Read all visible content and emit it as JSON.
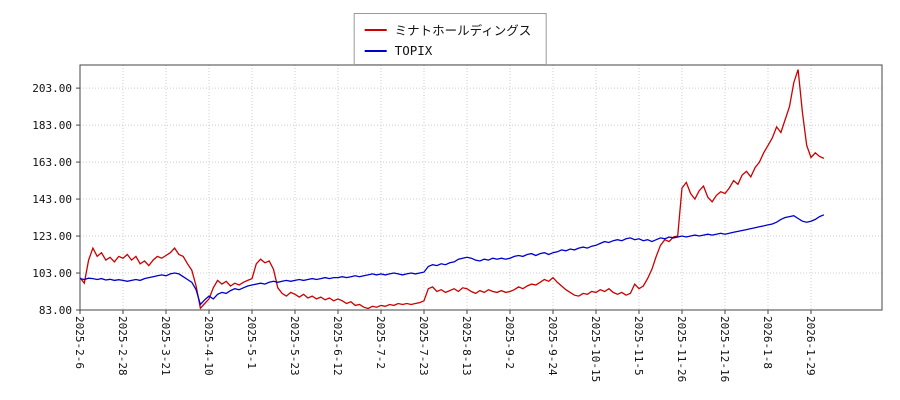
{
  "chart_data": {
    "type": "line",
    "title": "",
    "legend_position": "top-center",
    "grid": true,
    "grid_color": "#cccccc",
    "axis_color": "#444444",
    "background_color": "#ffffff",
    "ylim": [
      83,
      215.5
    ],
    "y_ticks": [
      83,
      103,
      123,
      143,
      163,
      183,
      203
    ],
    "y_tick_labels": [
      "83.00",
      "103.00",
      "123.00",
      "143.00",
      "163.00",
      "183.00",
      "203.00"
    ],
    "x_tick_labels": [
      "2025-2-6",
      "2025-2-28",
      "2025-3-21",
      "2025-4-10",
      "2025-5-1",
      "2025-5-23",
      "2025-6-12",
      "2025-7-2",
      "2025-7-23",
      "2025-8-13",
      "2025-9-2",
      "2025-9-24",
      "2025-10-15",
      "2025-11-5",
      "2025-11-26",
      "2025-12-16",
      "2026-1-8",
      "2026-1-29"
    ],
    "points_per_tick": 10,
    "series": [
      {
        "name": "ミナトホールディングス",
        "color": "#cc0000",
        "values": [
          100.5,
          97.5,
          110,
          116.5,
          112,
          114,
          110,
          111.5,
          109,
          112,
          111,
          113,
          110,
          112,
          108,
          109.5,
          107,
          110,
          112,
          111,
          112.5,
          114,
          116.5,
          113,
          112,
          108,
          104.5,
          96,
          84,
          86.5,
          89,
          95,
          99,
          97,
          98.5,
          96,
          97.5,
          96.5,
          98,
          99,
          100,
          108,
          110.5,
          108.5,
          109.5,
          105,
          95,
          92,
          90.5,
          92.5,
          91.5,
          90,
          91.5,
          89.5,
          90.5,
          89,
          90,
          88.5,
          89.5,
          88,
          89,
          88,
          86.5,
          87.5,
          85.5,
          86,
          84.5,
          83.8,
          85,
          84.5,
          85.5,
          85,
          86,
          85.5,
          86.5,
          86,
          86.5,
          86,
          86.5,
          87,
          88,
          94.5,
          95.5,
          93,
          94,
          92.5,
          93.5,
          94.5,
          93,
          95,
          94.5,
          93,
          92,
          93.5,
          92.5,
          94,
          93,
          92.5,
          93.5,
          92.5,
          93,
          94,
          95.5,
          94.5,
          96,
          97,
          96.5,
          98,
          99.5,
          98.5,
          100.5,
          98,
          96,
          94,
          92.5,
          91,
          90.5,
          92,
          91.5,
          93,
          92.5,
          94,
          93,
          94.5,
          92.5,
          91.5,
          92.5,
          91,
          92,
          97,
          94.5,
          96,
          100,
          105,
          112,
          118,
          121,
          120,
          122.5,
          123,
          149,
          152,
          146,
          143,
          147.5,
          150,
          144,
          141.5,
          145,
          147,
          146,
          149,
          153,
          151,
          156,
          158,
          155,
          160,
          163,
          168,
          172,
          176,
          182,
          179,
          186,
          193,
          206,
          213,
          190,
          172,
          165.5,
          168,
          166,
          165
        ]
      },
      {
        "name": "TOPIX",
        "color": "#0000cc",
        "values": [
          100,
          99.5,
          100.2,
          100,
          99.5,
          100,
          99.2,
          99.6,
          99,
          99.4,
          99,
          98.5,
          99,
          99.5,
          99,
          100,
          100.5,
          101,
          101.5,
          102,
          101.5,
          102.5,
          103,
          102.5,
          101,
          99.5,
          98,
          94,
          86,
          88.5,
          90.5,
          89,
          91.5,
          92.5,
          92,
          93.5,
          94.5,
          94,
          95,
          96,
          96.5,
          97,
          97.5,
          97,
          98,
          98.5,
          98,
          98.5,
          99,
          98.5,
          99,
          99.5,
          99,
          99.5,
          100,
          99.5,
          100,
          100.5,
          100,
          100.5,
          100.5,
          101,
          100.5,
          101,
          101.5,
          101,
          101.5,
          102,
          102.5,
          102,
          102.5,
          102,
          102.5,
          103,
          102.5,
          102,
          102.5,
          103,
          102.5,
          103,
          103.5,
          106.5,
          107.5,
          107,
          108,
          107.5,
          108.5,
          109,
          110.5,
          111,
          111.5,
          111,
          110,
          109.5,
          110.5,
          110,
          111,
          110.5,
          111,
          110.5,
          111,
          112,
          112.5,
          112,
          113,
          113.5,
          112.5,
          113.5,
          114,
          113,
          114,
          114.5,
          115.5,
          115,
          116,
          115.5,
          116.5,
          117,
          116.5,
          117.5,
          118,
          119,
          120,
          119.5,
          120.5,
          121,
          120.5,
          121.5,
          122,
          121,
          121.5,
          120.5,
          121,
          120,
          121,
          122,
          121.5,
          122.5,
          122,
          122.5,
          123,
          122.5,
          123,
          123.5,
          123,
          123.5,
          124,
          123.5,
          124,
          124.5,
          124,
          124.5,
          125,
          125.5,
          126,
          126.5,
          127,
          127.5,
          128,
          128.5,
          129,
          129.5,
          130.5,
          132,
          133,
          133.5,
          134,
          132.5,
          131,
          130.5,
          131,
          132,
          133.5,
          134.5
        ]
      }
    ]
  }
}
